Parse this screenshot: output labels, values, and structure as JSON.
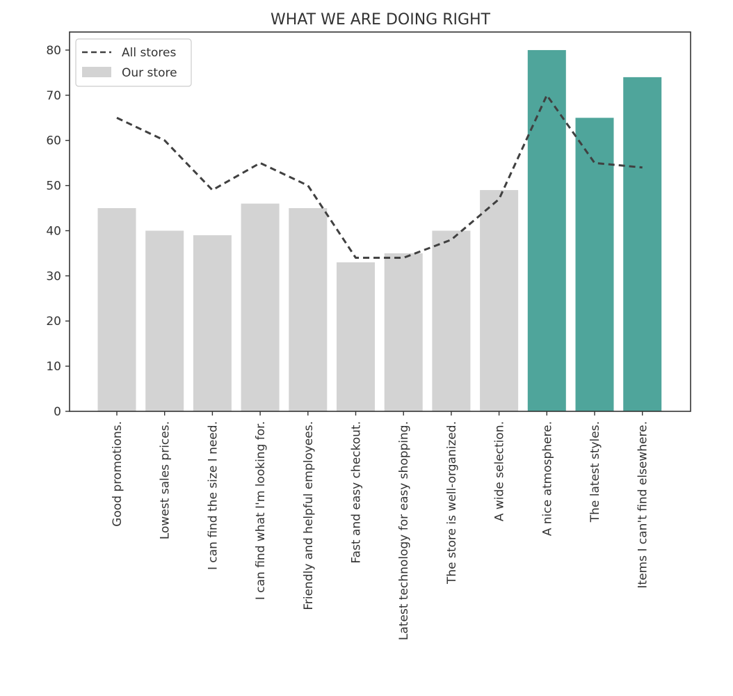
{
  "chart_data": {
    "type": "bar",
    "title": "WHAT WE ARE DOING RIGHT",
    "xlabel": "",
    "ylabel": "",
    "ylim": [
      0,
      84
    ],
    "yticks": [
      0,
      10,
      20,
      30,
      40,
      50,
      60,
      70,
      80
    ],
    "categories": [
      "Good promotions.",
      "Lowest sales prices.",
      "I can find the size I need.",
      "I can find what I'm looking for.",
      "Friendly and helpful employees.",
      "Fast and easy checkout.",
      "Latest technology for easy shopping.",
      "The store is well-organized.",
      "A wide selection.",
      "A nice atmosphere.",
      "The latest styles.",
      "Items I can't find elsewhere."
    ],
    "series": [
      {
        "name": "Our store",
        "kind": "bar",
        "values": [
          45,
          40,
          39,
          46,
          45,
          33,
          35,
          40,
          49,
          80,
          65,
          74
        ],
        "color": "#d3d3d3",
        "highlight_color": "#4fa59b",
        "highlight_indices": [
          9,
          10,
          11
        ]
      },
      {
        "name": "All stores",
        "kind": "line",
        "style": "dashed",
        "values": [
          65,
          60,
          49,
          55,
          50,
          34,
          34,
          38,
          47,
          70,
          55,
          54
        ],
        "color": "#404040"
      }
    ],
    "legend": {
      "placement": "top-left"
    },
    "grid": false
  }
}
